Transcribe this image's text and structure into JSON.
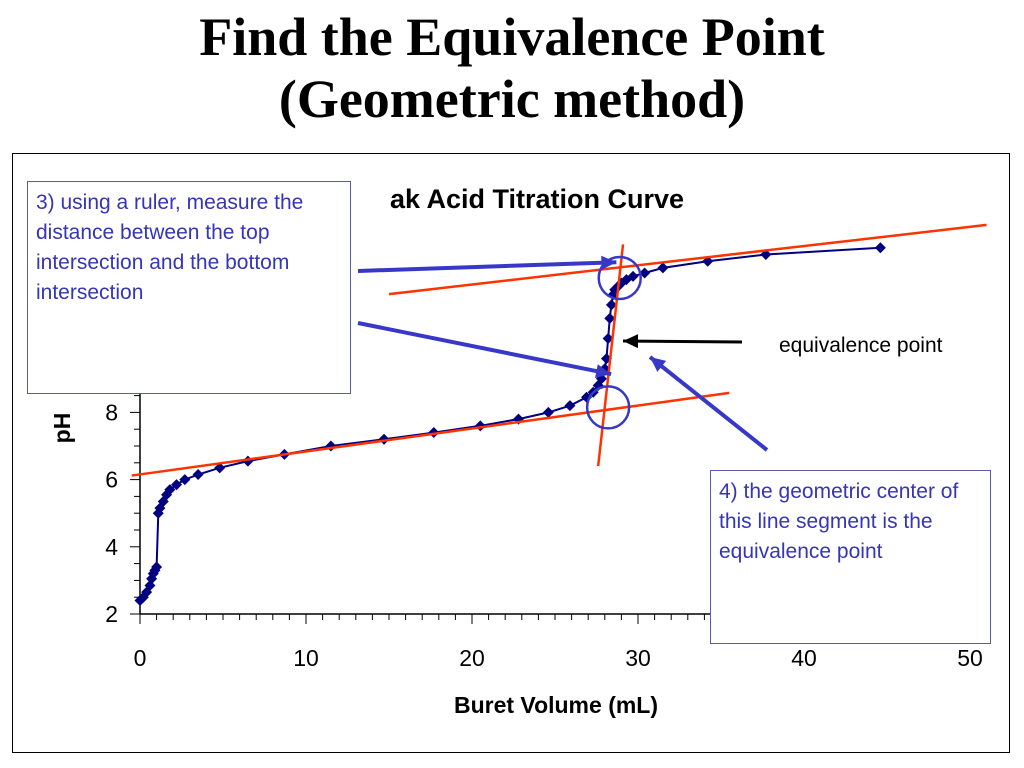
{
  "slide": {
    "title_line1": "Find the Equivalence Point",
    "title_line2": "(Geometric method)"
  },
  "callouts": {
    "step3": "3) using a ruler, measure the distance between the top intersection and the bottom intersection",
    "step4": "4) the geometric center of this line segment is the equivalence point",
    "equivalence": "equivalence point"
  },
  "colors": {
    "data": "#000080",
    "tangent": "#ff3300",
    "callout": "#3535b5",
    "circle": "#3838c8"
  },
  "chart_data": {
    "type": "scatter",
    "title": "ak Acid Titration Curve",
    "xlabel": "Buret Volume (mL)",
    "ylabel": "pH",
    "xlim": [
      0,
      50
    ],
    "ylim": [
      2,
      14
    ],
    "xticks": [
      "0",
      "10",
      "20",
      "30",
      "40",
      "50"
    ],
    "yticks": [
      "2",
      "4",
      "6",
      "8"
    ],
    "series": [
      {
        "x": [
          0.0,
          0.2,
          0.4,
          0.6,
          0.7,
          0.8,
          0.9,
          1.0,
          1.1,
          1.2,
          1.4,
          1.6,
          1.8,
          2.2,
          2.7,
          3.5,
          4.8,
          6.5,
          8.7,
          11.5,
          14.7,
          17.7,
          20.5,
          22.8,
          24.6,
          25.9,
          26.9,
          27.3,
          27.6,
          27.8,
          28.0,
          28.1,
          28.2,
          28.3,
          28.4,
          28.5,
          28.6,
          28.8,
          29.0,
          29.3,
          29.7,
          30.4,
          31.5,
          34.2,
          37.7,
          44.6
        ],
        "y": [
          2.4,
          2.5,
          2.65,
          2.85,
          3.05,
          3.2,
          3.3,
          3.4,
          5.0,
          5.15,
          5.35,
          5.55,
          5.7,
          5.85,
          6.0,
          6.15,
          6.35,
          6.55,
          6.75,
          7.0,
          7.2,
          7.4,
          7.6,
          7.8,
          8.0,
          8.2,
          8.45,
          8.6,
          8.8,
          9.0,
          9.3,
          9.6,
          10.2,
          10.8,
          11.2,
          11.5,
          11.65,
          11.75,
          11.85,
          11.95,
          12.05,
          12.15,
          12.3,
          12.5,
          12.7,
          12.9
        ]
      }
    ],
    "tangent_lines": [
      {
        "x": [
          -0.5,
          35.5
        ],
        "y": [
          6.12,
          8.58
        ]
      },
      {
        "x": [
          15,
          51
        ],
        "y": [
          11.52,
          13.58
        ]
      },
      {
        "x": [
          27.6,
          29.1
        ],
        "y": [
          6.4,
          13.0
        ]
      }
    ],
    "intersection_circles": [
      {
        "x": 28.9,
        "y": 12.0
      },
      {
        "x": 28.2,
        "y": 8.15
      }
    ],
    "marker_points": [
      {
        "x": 29.0,
        "y": 12.5
      },
      {
        "x": 28.5,
        "y": 9.2
      }
    ],
    "grid": false
  }
}
